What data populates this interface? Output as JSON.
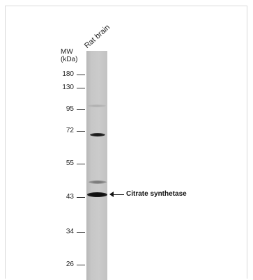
{
  "figure": {
    "sample_label": "Rat brain",
    "mw_title_line1": "MW",
    "mw_title_line2": "(kDa)",
    "markers": [
      {
        "value": "180"
      },
      {
        "value": "130"
      },
      {
        "value": "95"
      },
      {
        "value": "72"
      },
      {
        "value": "55"
      },
      {
        "value": "43"
      },
      {
        "value": "34"
      },
      {
        "value": "26"
      }
    ],
    "target_label": "Citrate synthetase"
  }
}
